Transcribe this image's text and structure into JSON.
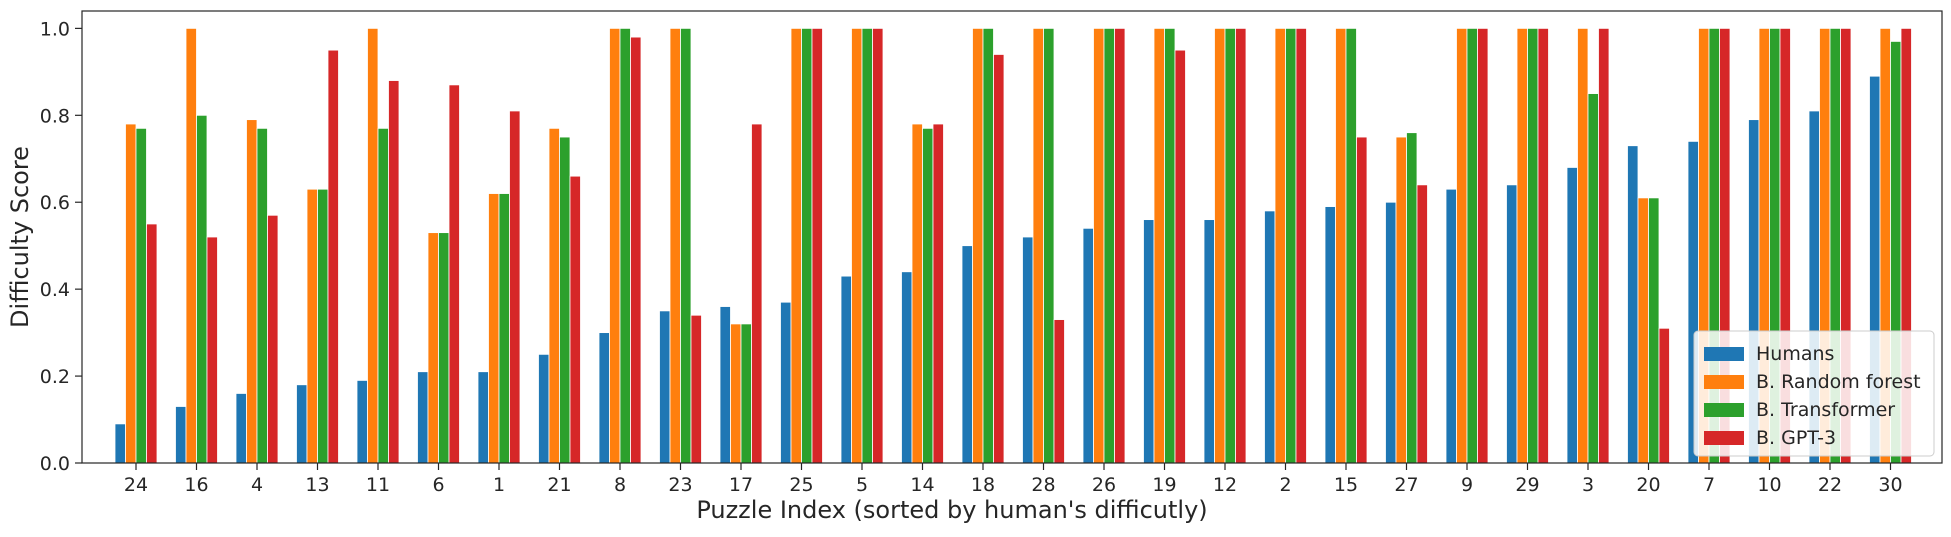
{
  "chart_data": {
    "type": "bar",
    "title": "",
    "xlabel": "Puzzle Index (sorted by human's difficutly)",
    "ylabel": "Difficulty Score",
    "ylim": [
      0,
      1.04
    ],
    "yticks": [
      "0.0",
      "0.2",
      "0.4",
      "0.6",
      "0.8",
      "1.0"
    ],
    "grid": false,
    "legend_position": "bottom-right",
    "categories": [
      "24",
      "16",
      "4",
      "13",
      "11",
      "6",
      "1",
      "21",
      "8",
      "23",
      "17",
      "25",
      "5",
      "14",
      "18",
      "28",
      "26",
      "19",
      "12",
      "2",
      "15",
      "27",
      "9",
      "29",
      "3",
      "20",
      "7",
      "10",
      "22",
      "30"
    ],
    "series": [
      {
        "name": "Humans",
        "color": "#1f77b4",
        "values": [
          0.09,
          0.13,
          0.16,
          0.18,
          0.19,
          0.21,
          0.21,
          0.25,
          0.3,
          0.35,
          0.36,
          0.37,
          0.43,
          0.44,
          0.5,
          0.52,
          0.54,
          0.56,
          0.56,
          0.58,
          0.59,
          0.6,
          0.63,
          0.64,
          0.68,
          0.73,
          0.74,
          0.79,
          0.81,
          0.89
        ]
      },
      {
        "name": "B. Random forest",
        "color": "#ff7f0e",
        "values": [
          0.78,
          1.0,
          0.79,
          0.63,
          1.0,
          0.53,
          0.62,
          0.77,
          1.0,
          1.0,
          0.32,
          1.0,
          1.0,
          0.78,
          1.0,
          1.0,
          1.0,
          1.0,
          1.0,
          1.0,
          1.0,
          0.75,
          1.0,
          1.0,
          1.0,
          0.61,
          1.0,
          1.0,
          1.0,
          1.0
        ]
      },
      {
        "name": "B. Transformer",
        "color": "#2ca02c",
        "values": [
          0.77,
          0.8,
          0.77,
          0.63,
          0.77,
          0.53,
          0.62,
          0.75,
          1.0,
          1.0,
          0.32,
          1.0,
          1.0,
          0.77,
          1.0,
          1.0,
          1.0,
          1.0,
          1.0,
          1.0,
          1.0,
          0.76,
          1.0,
          1.0,
          0.85,
          0.61,
          1.0,
          1.0,
          1.0,
          0.97
        ]
      },
      {
        "name": "B. GPT-3",
        "color": "#d62728",
        "values": [
          0.55,
          0.52,
          0.57,
          0.95,
          0.88,
          0.87,
          0.81,
          0.66,
          0.98,
          0.34,
          0.78,
          1.0,
          1.0,
          0.78,
          0.94,
          0.33,
          1.0,
          0.95,
          1.0,
          1.0,
          0.75,
          0.64,
          1.0,
          1.0,
          1.0,
          0.31,
          1.0,
          1.0,
          1.0,
          1.0
        ]
      }
    ]
  }
}
